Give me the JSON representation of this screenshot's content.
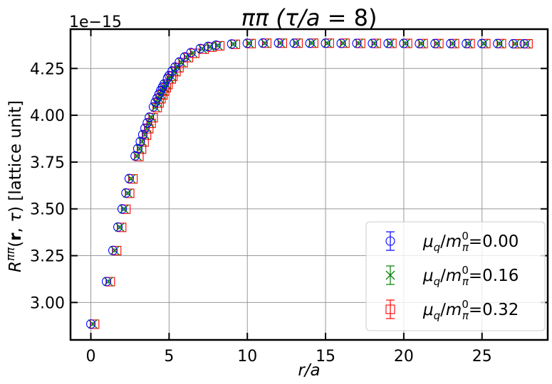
{
  "chart_data": {
    "type": "scatter",
    "title": "ππ (τ/a = 8)",
    "title_parts": {
      "a": "ππ (",
      "b": "τ",
      "c": "/",
      "d": "a",
      "e": " = 8)"
    },
    "xlabel": "r/a",
    "ylabel": "R^{ππ}(r, τ) [lattice unit]",
    "ylabel_parts": {
      "a": "R",
      "sup": "ππ",
      "b": "(",
      "r": "r",
      "c": ", ",
      "tau": "τ",
      "d": ") [lattice unit]"
    },
    "y_offset_text": "1e−15",
    "y_scale_exponent": -15,
    "xlim": [
      -1.3,
      29.2
    ],
    "ylim": [
      2.8,
      4.46
    ],
    "x_ticks": [
      0,
      5,
      10,
      15,
      20,
      25
    ],
    "x_tick_labels": [
      "0",
      "5",
      "10",
      "15",
      "20",
      "25"
    ],
    "y_ticks": [
      3.0,
      3.25,
      3.5,
      3.75,
      4.0,
      4.25
    ],
    "y_tick_labels": [
      "3.00",
      "3.25",
      "3.50",
      "3.75",
      "4.00",
      "4.25"
    ],
    "grid": true,
    "legend_position": "lower-right",
    "series": [
      {
        "name": "μq/mπ0=0.00",
        "label_parts": {
          "mu": "μ",
          "sub1": "q",
          "slash": "/",
          "m": "m",
          "sup": "0",
          "sub2": "π",
          "val": "=0.00"
        },
        "color": "#0000ff",
        "marker": "circle"
      },
      {
        "name": "μq/mπ0=0.16",
        "label_parts": {
          "mu": "μ",
          "sub1": "q",
          "slash": "/",
          "m": "m",
          "sup": "0",
          "sub2": "π",
          "val": "=0.16"
        },
        "color": "#008000",
        "marker": "x"
      },
      {
        "name": "μq/mπ0=0.32",
        "label_parts": {
          "mu": "μ",
          "sub1": "q",
          "slash": "/",
          "m": "m",
          "sup": "0",
          "sub2": "π",
          "val": "=0.32"
        },
        "color": "#ff0000",
        "marker": "square"
      }
    ],
    "x": [
      0,
      1,
      1.41,
      1.73,
      2,
      2.24,
      2.45,
      2.83,
      3,
      3.16,
      3.32,
      3.46,
      3.61,
      3.74,
      4,
      4.12,
      4.24,
      4.36,
      4.47,
      4.58,
      4.69,
      4.9,
      5,
      5.2,
      5.39,
      5.66,
      6,
      6.4,
      7,
      7.5,
      8,
      9,
      10,
      11,
      12,
      13,
      14,
      15,
      16,
      17,
      18,
      19,
      20,
      21,
      22,
      23,
      24,
      25,
      26,
      27,
      27.7
    ],
    "y_series": [
      [
        2.885,
        3.112,
        3.278,
        3.403,
        3.5,
        3.585,
        3.662,
        3.783,
        3.822,
        3.86,
        3.897,
        3.931,
        3.96,
        3.99,
        4.045,
        4.07,
        4.092,
        4.113,
        4.133,
        4.151,
        4.168,
        4.198,
        4.212,
        4.237,
        4.258,
        4.285,
        4.312,
        4.335,
        4.357,
        4.368,
        4.375,
        4.381,
        4.385,
        4.386,
        4.386,
        4.385,
        4.385,
        4.385,
        4.384,
        4.384,
        4.384,
        4.384,
        4.384,
        4.383,
        4.383,
        4.383,
        4.383,
        4.383,
        4.383,
        4.382,
        4.382
      ],
      [
        2.885,
        3.112,
        3.278,
        3.402,
        3.499,
        3.584,
        3.661,
        3.782,
        3.821,
        3.859,
        3.896,
        3.93,
        3.959,
        3.989,
        4.043,
        4.068,
        4.09,
        4.111,
        4.131,
        4.149,
        4.166,
        4.196,
        4.21,
        4.235,
        4.256,
        4.283,
        4.31,
        4.333,
        4.355,
        4.366,
        4.373,
        4.38,
        4.384,
        4.385,
        4.386,
        4.386,
        4.386,
        4.385,
        4.385,
        4.385,
        4.384,
        4.384,
        4.384,
        4.383,
        4.383,
        4.383,
        4.383,
        4.383,
        4.383,
        4.382,
        4.382
      ],
      [
        2.884,
        3.111,
        3.277,
        3.401,
        3.498,
        3.583,
        3.66,
        3.78,
        3.819,
        3.857,
        3.894,
        3.928,
        3.957,
        3.987,
        4.041,
        4.066,
        4.088,
        4.109,
        4.129,
        4.147,
        4.164,
        4.194,
        4.208,
        4.233,
        4.254,
        4.281,
        4.308,
        4.331,
        4.353,
        4.364,
        4.371,
        4.379,
        4.383,
        4.385,
        4.385,
        4.385,
        4.385,
        4.385,
        4.385,
        4.384,
        4.384,
        4.384,
        4.384,
        4.383,
        4.383,
        4.383,
        4.383,
        4.383,
        4.383,
        4.382,
        4.382
      ]
    ]
  }
}
